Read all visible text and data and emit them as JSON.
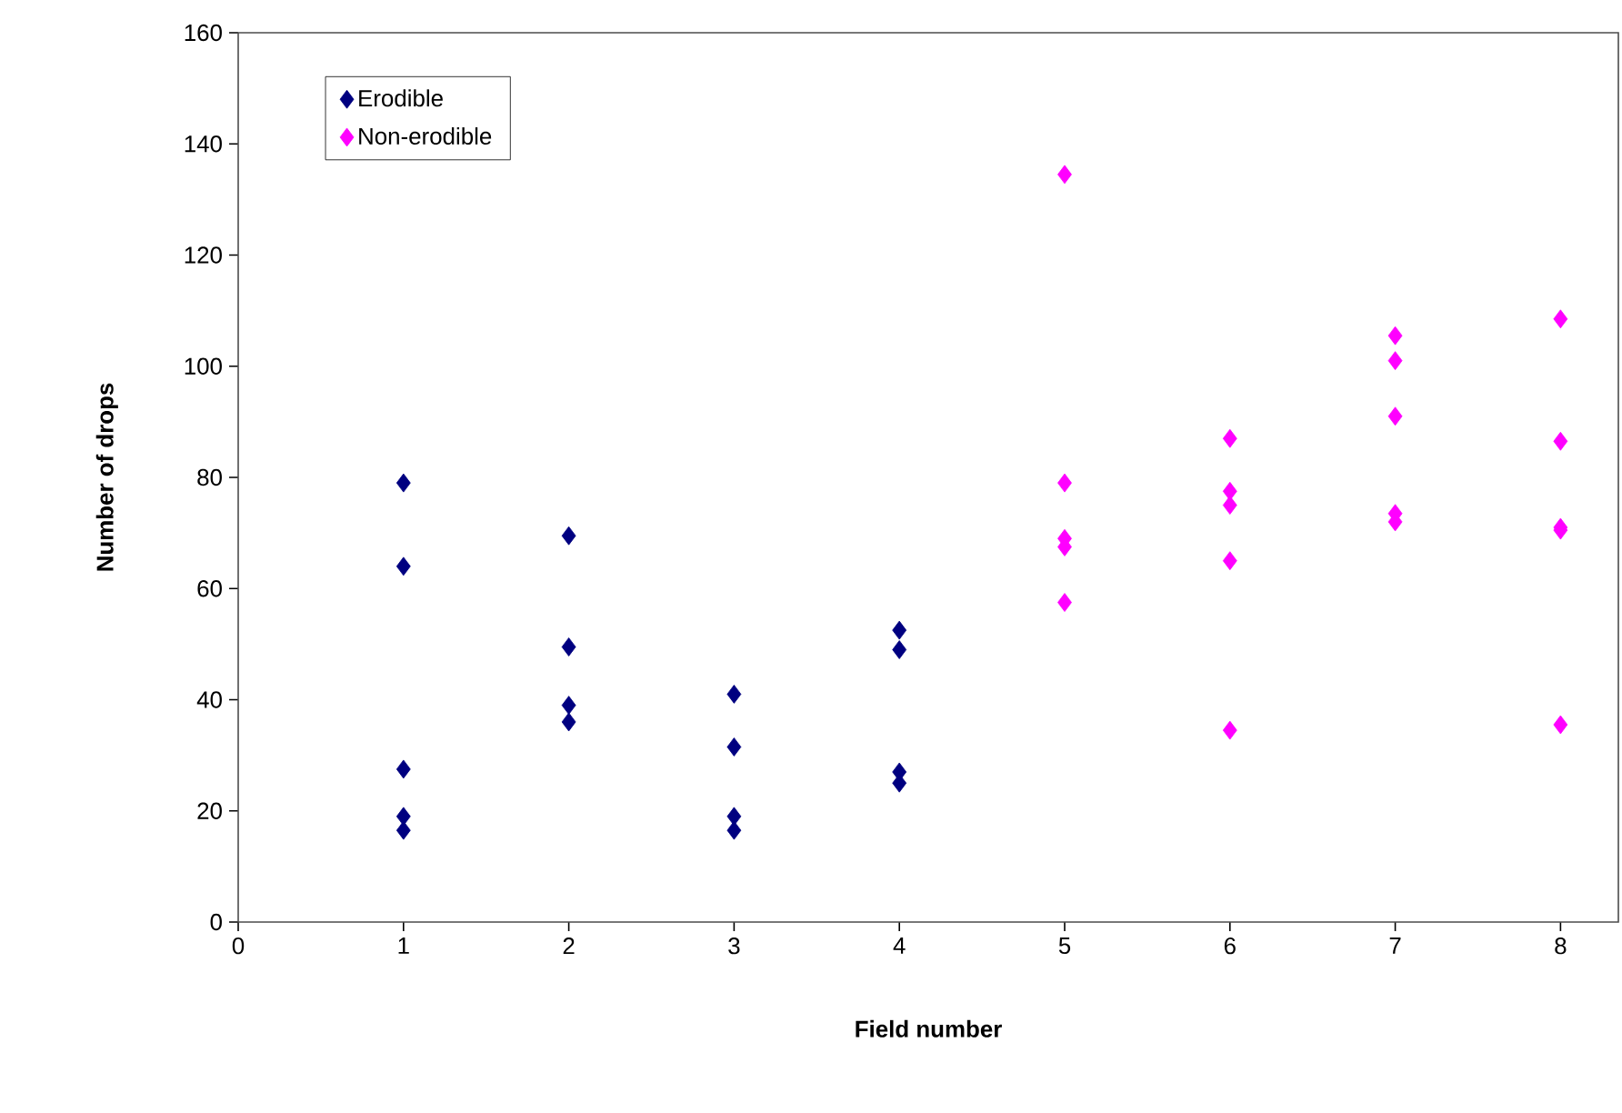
{
  "chart_data": {
    "type": "scatter",
    "xlabel": "Field number",
    "ylabel": "Number of drops",
    "xlim": [
      0,
      8.35
    ],
    "ylim": [
      0,
      160
    ],
    "xticks": [
      0,
      1,
      2,
      3,
      4,
      5,
      6,
      7,
      8
    ],
    "yticks": [
      0,
      20,
      40,
      60,
      80,
      100,
      120,
      140,
      160
    ],
    "marker": "diamond",
    "legend": "top left",
    "grid": false,
    "series": [
      {
        "name": "Erodible",
        "color": "#000080",
        "x": [
          1,
          1,
          1,
          1,
          1,
          2,
          2,
          2,
          2,
          3,
          3,
          3,
          3,
          4,
          4,
          4,
          4
        ],
        "values": [
          79,
          64,
          27.5,
          19,
          16.5,
          69.5,
          49.5,
          39,
          36,
          41,
          31.5,
          19,
          16.5,
          52.5,
          49,
          27,
          25
        ]
      },
      {
        "name": "Non-erodible",
        "color": "#ff00ff",
        "x": [
          5,
          5,
          5,
          5,
          5,
          6,
          6,
          6,
          6,
          6,
          7,
          7,
          7,
          7,
          7,
          8,
          8,
          8,
          8,
          8
        ],
        "values": [
          134.5,
          79,
          69,
          67.5,
          57.5,
          87,
          77.5,
          75,
          65,
          34.5,
          105.5,
          101,
          91,
          73.5,
          72,
          108.5,
          86.5,
          71,
          70.5,
          35.5
        ]
      }
    ]
  }
}
